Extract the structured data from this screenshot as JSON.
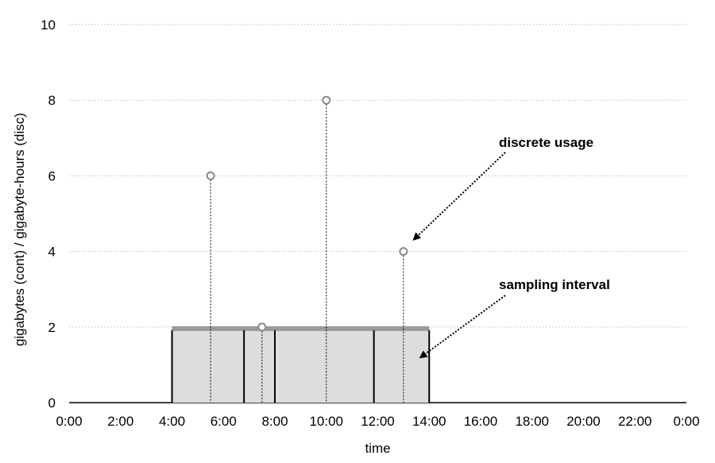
{
  "chart_data": {
    "type": "scatter",
    "title": "",
    "xlabel": "time",
    "ylabel": "gigabytes (cont) / gigabyte-hours (disc)",
    "xlim": [
      0,
      24
    ],
    "ylim": [
      0,
      10
    ],
    "x_ticks": [
      0,
      2,
      4,
      6,
      8,
      10,
      12,
      14,
      16,
      18,
      20,
      22,
      24
    ],
    "x_tick_labels": [
      "0:00",
      "2:00",
      "4:00",
      "6:00",
      "8:00",
      "10:00",
      "12:00",
      "14:00",
      "16:00",
      "18:00",
      "20:00",
      "22:00",
      "0:00"
    ],
    "y_ticks": [
      0,
      2,
      4,
      6,
      8,
      10
    ],
    "y_tick_labels": [
      "0",
      "2",
      "4",
      "6",
      "8",
      "10"
    ],
    "grid": "horizontal dotted",
    "colors": {
      "area_fill": "#dddddd",
      "level_line": "#999999",
      "points": "#888888",
      "grid": "#bbbbbb"
    },
    "continuous_usage": {
      "start": 4,
      "end": 14,
      "value": 2,
      "interval_boundaries": [
        4,
        6.8,
        8,
        11.85,
        14
      ]
    },
    "discrete_usage": [
      {
        "x": 5.5,
        "y": 6
      },
      {
        "x": 7.5,
        "y": 2
      },
      {
        "x": 10,
        "y": 8
      },
      {
        "x": 13,
        "y": 4
      }
    ],
    "annotations": [
      {
        "text": "discrete usage",
        "target_x": 13,
        "target_y": 4
      },
      {
        "text": "sampling interval",
        "target_x": 14,
        "target_y": 1.3
      }
    ]
  }
}
